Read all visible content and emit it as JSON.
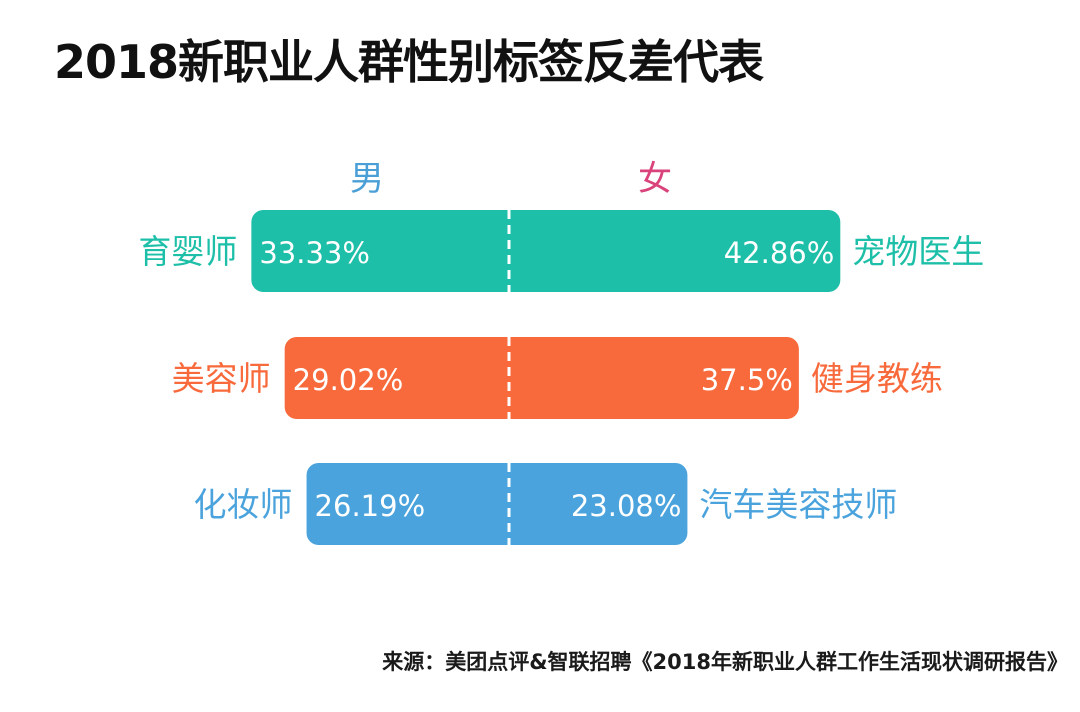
{
  "title": "2018新职业人群性别标签反差代表",
  "source": "来源：美团点评&智联招聘《2018年新职业人群工作生活现状调研报告》",
  "chart_data": {
    "type": "bar",
    "orientation": "diverging-horizontal",
    "series": [
      {
        "name": "男",
        "color": "#4a9fd6"
      },
      {
        "name": "女",
        "color": "#d9427a"
      }
    ],
    "rows": [
      {
        "male_label": "育婴师",
        "male_value": 33.33,
        "male_text": "33.33%",
        "female_label": "宠物医生",
        "female_value": 42.86,
        "female_text": "42.86%",
        "color": "#1dbfa8"
      },
      {
        "male_label": "美容师",
        "male_value": 29.02,
        "male_text": "29.02%",
        "female_label": "健身教练",
        "female_value": 37.5,
        "female_text": "37.5%",
        "color": "#f86a3c"
      },
      {
        "male_label": "化妆师",
        "male_value": 26.19,
        "male_text": "26.19%",
        "female_label": "汽车美容技师",
        "female_value": 23.08,
        "female_text": "23.08%",
        "color": "#4aa3dc"
      }
    ]
  }
}
